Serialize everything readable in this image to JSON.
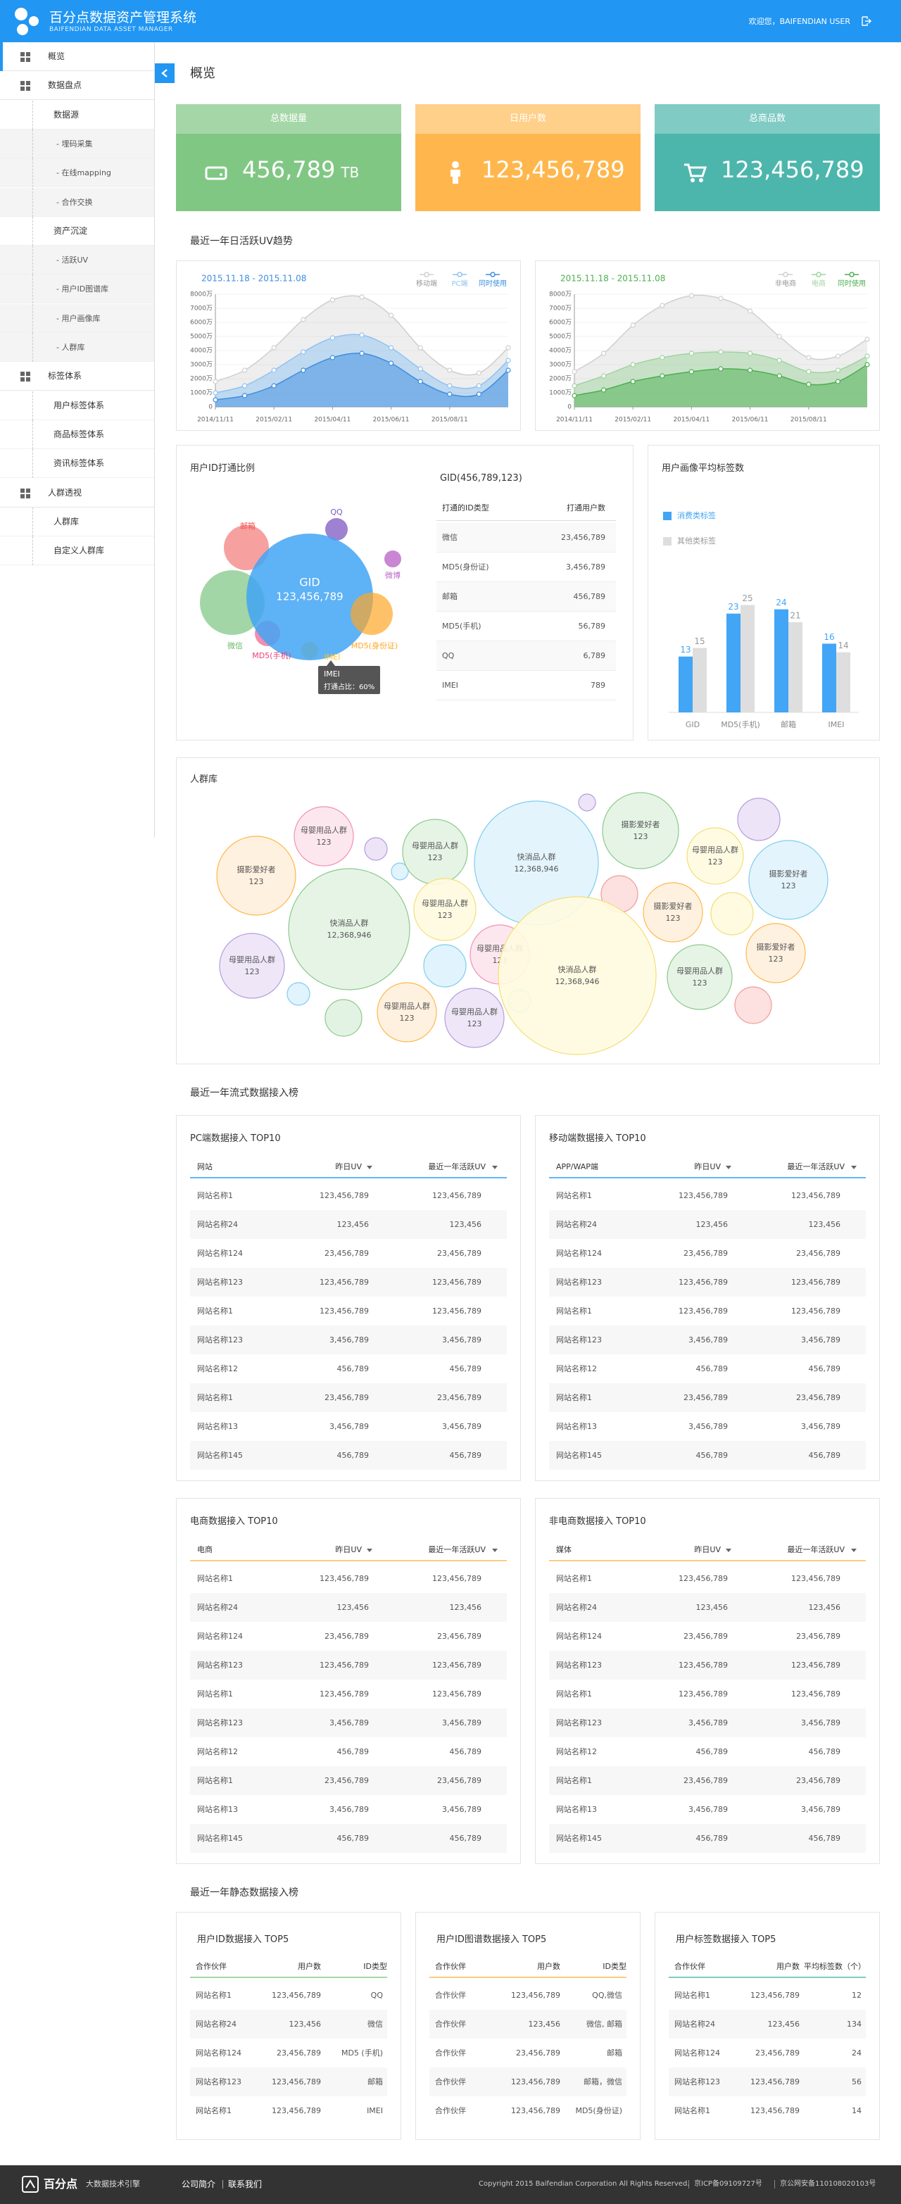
{
  "header": {
    "title": "百分点数据资产管理系统",
    "subtitle": "BAIFENDIAN DATA ASSET MANAGER",
    "user": "欢迎您，BAIFENDIAN USER"
  },
  "sidebar": [
    {
      "label": "概览"
    },
    {
      "label": "数据盘点",
      "children": [
        {
          "label": "数据源",
          "children": [
            {
              "label": "- 埋码采集"
            },
            {
              "label": "- 在线mapping"
            },
            {
              "label": "- 合作交换"
            }
          ]
        },
        {
          "label": "资产沉淀",
          "children": [
            {
              "label": "- 活跃UV"
            },
            {
              "label": "- 用户ID图谱库"
            },
            {
              "label": "- 用户画像库"
            },
            {
              "label": "- 人群库"
            }
          ]
        }
      ]
    },
    {
      "label": "标签体系",
      "children": [
        {
          "label": "用户标签体系"
        },
        {
          "label": "商品标签体系"
        },
        {
          "label": "资讯标签体系"
        }
      ]
    },
    {
      "label": "人群透视",
      "children": [
        {
          "label": "人群库"
        },
        {
          "label": "自定义人群库"
        }
      ]
    }
  ],
  "page_title": "概览",
  "stats": [
    {
      "label": "总数据量",
      "value": "456,789",
      "unit": "TB"
    },
    {
      "label": "日用户数",
      "value": "123,456,789"
    },
    {
      "label": "总商品数",
      "value": "123,456,789"
    }
  ],
  "trend_title": "最近一年日活跃UV趋势",
  "uv_trend": [
    {
      "type": "area",
      "subtitle": "2015.11.18 - 2015.11.08",
      "categories": [
        "2014/11/11",
        null,
        "2015/02/11",
        null,
        "2015/04/11",
        null,
        "2015/06/11",
        null,
        "2015/08/11",
        null,
        null
      ],
      "series": [
        {
          "name": "移动端",
          "color": "#cfcfcf",
          "values": [
            1800,
            2600,
            4200,
            6200,
            7600,
            7800,
            6500,
            4200,
            2600,
            2400,
            4200
          ]
        },
        {
          "name": "PC端",
          "color": "#8fc3f2",
          "values": [
            1000,
            1500,
            2600,
            3900,
            4900,
            5100,
            4200,
            2700,
            1500,
            1500,
            3300
          ]
        },
        {
          "name": "同时使用",
          "color": "#3b8ee0",
          "values": [
            500,
            800,
            1500,
            2600,
            3500,
            3800,
            3100,
            1800,
            900,
            900,
            2600
          ]
        }
      ],
      "ylim": [
        0,
        8000
      ],
      "yticks": [
        0,
        {
          "value": 1000,
          "label": "1000万"
        },
        {
          "value": 2000,
          "label": "2000万"
        },
        {
          "value": 3000,
          "label": "3000万"
        },
        {
          "value": 4000,
          "label": "4000万"
        },
        {
          "value": 5000,
          "label": "5000万"
        },
        {
          "value": 6000,
          "label": "6000万"
        },
        {
          "value": 7000,
          "label": "7000万"
        },
        {
          "value": 8000,
          "label": "8000万"
        }
      ]
    },
    {
      "type": "area",
      "subtitle": "2015.11.18 - 2015.11.08",
      "categories": [
        "2014/11/11",
        null,
        "2015/02/11",
        null,
        "2015/04/11",
        null,
        "2015/06/11",
        null,
        "2015/08/11",
        null,
        null
      ],
      "series": [
        {
          "name": "非电商",
          "color": "#cfcfcf",
          "values": [
            2500,
            3800,
            5800,
            7200,
            7900,
            7700,
            6800,
            5000,
            3500,
            3600,
            4800
          ]
        },
        {
          "name": "电商",
          "color": "#9fd49f",
          "values": [
            1500,
            2200,
            3000,
            3500,
            3800,
            3900,
            3800,
            3300,
            2500,
            2600,
            3600
          ]
        },
        {
          "name": "同时使用",
          "color": "#4caf50",
          "values": [
            800,
            1200,
            1800,
            2200,
            2500,
            2700,
            2600,
            2200,
            1600,
            1800,
            3000
          ]
        }
      ],
      "ylim": [
        0,
        8000
      ],
      "yticks": [
        0,
        {
          "value": 1000,
          "label": "1000万"
        },
        {
          "value": 2000,
          "label": "2000万"
        },
        {
          "value": 3000,
          "label": "3000万"
        },
        {
          "value": 4000,
          "label": "4000万"
        },
        {
          "value": 5000,
          "label": "5000万"
        },
        {
          "value": 6000,
          "label": "6000万"
        },
        {
          "value": 7000,
          "label": "7000万"
        },
        {
          "value": 8000,
          "label": "8000万"
        }
      ]
    }
  ],
  "id_ratio": {
    "title": "用户ID打通比例",
    "center": {
      "label": "GID",
      "value": "123,456,789"
    },
    "circles": [
      "邮箱",
      "QQ",
      "微信",
      "微博",
      "MD5(手机)",
      "MD5(身份证)",
      "IMEI"
    ],
    "tooltip": {
      "title": "IMEI",
      "text": "打通占比：60%"
    },
    "table": {
      "title": "GID(456,789,123)",
      "header": [
        "打通的ID类型",
        "打通用户数"
      ],
      "rows": [
        [
          "微信",
          "23,456,789"
        ],
        [
          "MD5(身份证)",
          "3,456,789"
        ],
        [
          "邮箱",
          "456,789"
        ],
        [
          "MD5(手机)",
          "56,789"
        ],
        [
          "QQ",
          "6,789"
        ],
        [
          "IMEI",
          "789"
        ]
      ]
    }
  },
  "tag_avg": {
    "type": "bar",
    "title": "用户画像平均标签数",
    "categories": [
      "GID",
      "MD5(手机)",
      "邮箱",
      "IMEI"
    ],
    "series": [
      {
        "name": "消费类标签",
        "color": "#42a5f5",
        "values": [
          13,
          23,
          24,
          16
        ]
      },
      {
        "name": "其他类标签",
        "color": "#dedede",
        "values": [
          15,
          25,
          21,
          14
        ]
      }
    ]
  },
  "crowd": {
    "title": "人群库",
    "bubbles": [
      {
        "label": "母婴用品人群",
        "value": "123"
      },
      {
        "label": "摄影爱好者",
        "value": "123"
      },
      {
        "label": "母婴用品人群",
        "value": "123"
      },
      {
        "label": "快消品人群",
        "value": "12,368,946"
      },
      {
        "label": "摄影爱好者",
        "value": "123"
      },
      {
        "label": "母婴用品人群",
        "value": "123"
      },
      {
        "label": "摄影爱好者",
        "value": "123"
      },
      {
        "label": "快消品人群",
        "value": "12,368,946"
      },
      {
        "label": "母婴用品人群",
        "value": "123"
      },
      {
        "label": "母婴用品人群",
        "value": "123"
      },
      {
        "label": "快消品人群",
        "value": "12,368,946"
      },
      {
        "label": "摄影爱好者",
        "value": "123"
      },
      {
        "label": "母婴用品人群",
        "value": "123"
      },
      {
        "label": "摄影爱好者",
        "value": "123"
      },
      {
        "label": "母婴用品人群",
        "value": "123"
      },
      {
        "label": "母婴用品人群",
        "value": "123"
      },
      {
        "label": "母婴用品人群",
        "value": "123"
      }
    ]
  },
  "stream": {
    "title": "最近一年流式数据接入榜",
    "tables": [
      {
        "title": "PC端数据接入 TOP10",
        "header": [
          "网站",
          "昨日UV",
          "最近一年活跃UV"
        ],
        "rows": [
          [
            "网站名称1",
            "123,456,789",
            "123,456,789"
          ],
          [
            "网站名称24",
            "123,456",
            "123,456"
          ],
          [
            "网站名称124",
            "23,456,789",
            "23,456,789"
          ],
          [
            "网站名称123",
            "123,456,789",
            "123,456,789"
          ],
          [
            "网站名称1",
            "123,456,789",
            "123,456,789"
          ],
          [
            "网站名称123",
            "3,456,789",
            "3,456,789"
          ],
          [
            "网站名称12",
            "456,789",
            "456,789"
          ],
          [
            "网站名称1",
            "23,456,789",
            "23,456,789"
          ],
          [
            "网站名称13",
            "3,456,789",
            "3,456,789"
          ],
          [
            "网站名称145",
            "456,789",
            "456,789"
          ]
        ]
      },
      {
        "title": "移动端数据接入 TOP10",
        "header": [
          "APP/WAP端",
          "昨日UV",
          "最近一年活跃UV"
        ],
        "rows": [
          [
            "网站名称1",
            "123,456,789",
            "123,456,789"
          ],
          [
            "网站名称24",
            "123,456",
            "123,456"
          ],
          [
            "网站名称124",
            "23,456,789",
            "23,456,789"
          ],
          [
            "网站名称123",
            "123,456,789",
            "123,456,789"
          ],
          [
            "网站名称1",
            "123,456,789",
            "123,456,789"
          ],
          [
            "网站名称123",
            "3,456,789",
            "3,456,789"
          ],
          [
            "网站名称12",
            "456,789",
            "456,789"
          ],
          [
            "网站名称1",
            "23,456,789",
            "23,456,789"
          ],
          [
            "网站名称13",
            "3,456,789",
            "3,456,789"
          ],
          [
            "网站名称145",
            "456,789",
            "456,789"
          ]
        ]
      },
      {
        "title": "电商数据接入 TOP10",
        "header": [
          "电商",
          "昨日UV",
          "最近一年活跃UV"
        ],
        "rows": [
          [
            "网站名称1",
            "123,456,789",
            "123,456,789"
          ],
          [
            "网站名称24",
            "123,456",
            "123,456"
          ],
          [
            "网站名称124",
            "23,456,789",
            "23,456,789"
          ],
          [
            "网站名称123",
            "123,456,789",
            "123,456,789"
          ],
          [
            "网站名称1",
            "123,456,789",
            "123,456,789"
          ],
          [
            "网站名称123",
            "3,456,789",
            "3,456,789"
          ],
          [
            "网站名称12",
            "456,789",
            "456,789"
          ],
          [
            "网站名称1",
            "23,456,789",
            "23,456,789"
          ],
          [
            "网站名称13",
            "3,456,789",
            "3,456,789"
          ],
          [
            "网站名称145",
            "456,789",
            "456,789"
          ]
        ]
      },
      {
        "title": "非电商数据接入 TOP10",
        "header": [
          "媒体",
          "昨日UV",
          "最近一年活跃UV"
        ],
        "rows": [
          [
            "网站名称1",
            "123,456,789",
            "123,456,789"
          ],
          [
            "网站名称24",
            "123,456",
            "123,456"
          ],
          [
            "网站名称124",
            "23,456,789",
            "23,456,789"
          ],
          [
            "网站名称123",
            "123,456,789",
            "123,456,789"
          ],
          [
            "网站名称1",
            "123,456,789",
            "123,456,789"
          ],
          [
            "网站名称123",
            "3,456,789",
            "3,456,789"
          ],
          [
            "网站名称12",
            "456,789",
            "456,789"
          ],
          [
            "网站名称1",
            "23,456,789",
            "23,456,789"
          ],
          [
            "网站名称13",
            "3,456,789",
            "3,456,789"
          ],
          [
            "网站名称145",
            "456,789",
            "456,789"
          ]
        ]
      }
    ]
  },
  "static": {
    "title": "最近一年静态数据接入榜",
    "tables": [
      {
        "title": "用户ID数据接入 TOP5",
        "header": [
          "合作伙伴",
          "用户数",
          "ID类型"
        ],
        "rows": [
          [
            "网站名称1",
            "123,456,789",
            "QQ"
          ],
          [
            "网站名称24",
            "123,456",
            "微信"
          ],
          [
            "网站名称124",
            "23,456,789",
            "MD5 (手机)"
          ],
          [
            "网站名称123",
            "123,456,789",
            "邮箱"
          ],
          [
            "网站名称1",
            "123,456,789",
            "IMEI"
          ]
        ]
      },
      {
        "title": "用户ID图谱数据接入 TOP5",
        "header": [
          "合作伙伴",
          "用户数",
          "ID类型"
        ],
        "rows": [
          [
            "合作伙伴",
            "123,456,789",
            "QQ,微信"
          ],
          [
            "合作伙伴",
            "123,456",
            "微信, 邮箱"
          ],
          [
            "合作伙伴",
            "23,456,789",
            "邮箱"
          ],
          [
            "合作伙伴",
            "123,456,789",
            "邮箱，微信"
          ],
          [
            "合作伙伴",
            "123,456,789",
            "MD5(身份证)"
          ]
        ]
      },
      {
        "title": "用户标签数据接入 TOP5",
        "header": [
          "合作伙伴",
          "用户数",
          "平均标签数（个）"
        ],
        "rows": [
          [
            "网站名称1",
            "123,456,789",
            "12"
          ],
          [
            "网站名称24",
            "123,456",
            "134"
          ],
          [
            "网站名称124",
            "23,456,789",
            "24"
          ],
          [
            "网站名称123",
            "123,456,789",
            "56"
          ],
          [
            "网站名称1",
            "123,456,789",
            "14"
          ]
        ]
      }
    ]
  },
  "footer": {
    "logo": "百分点",
    "slogan": "大数据技术引擎",
    "links": [
      "公司简介",
      "联系我们"
    ],
    "copyright": "Copyright 2015 Baifendian Corporation All Rights Reserved.",
    "icp": "京ICP备09109727号",
    "police": "京公网安备110108020103号"
  }
}
